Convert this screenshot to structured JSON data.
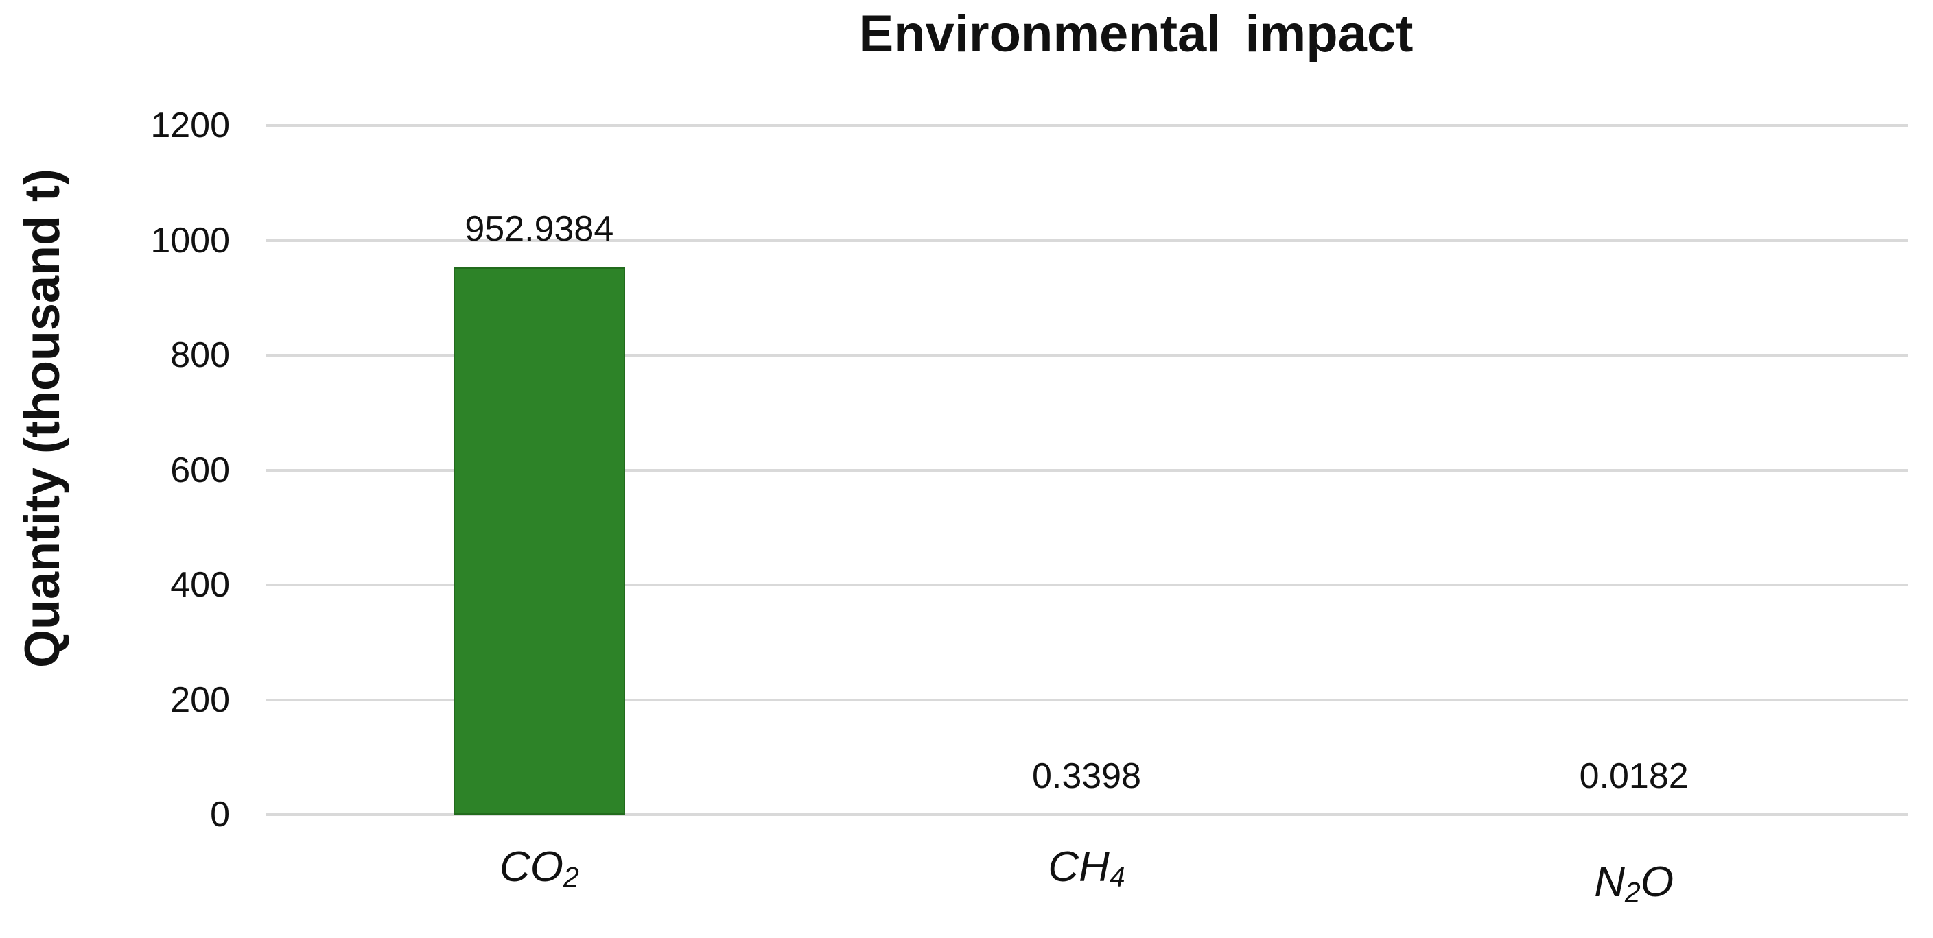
{
  "chart_data": {
    "type": "bar",
    "title": "Environmental impact",
    "xlabel": "",
    "ylabel": "Quantity (thousand t)",
    "categories": [
      "CO2",
      "CH4",
      "N2O"
    ],
    "category_labels": [
      [
        {
          "t": "CO"
        },
        {
          "t": "2",
          "sub": true
        }
      ],
      [
        {
          "t": "CH"
        },
        {
          "t": "4",
          "sub": true
        }
      ],
      [
        {
          "t": "N"
        },
        {
          "t": "2",
          "sub": true
        },
        {
          "t": "O"
        }
      ]
    ],
    "values": [
      952.9384,
      0.3398,
      0.0182
    ],
    "value_labels": [
      "952.9384",
      "0.3398",
      "0.0182"
    ],
    "ylim": [
      0,
      1200
    ],
    "yticks": [
      0,
      200,
      400,
      600,
      800,
      1000,
      1200
    ],
    "grid": "horizontal-only",
    "legend": "none",
    "bar_color": "#2d8328",
    "bar_border_color": "#226b1d",
    "gridline_color": "#d9d9d9",
    "text_color": "#111111",
    "background_color": "#ffffff"
  }
}
